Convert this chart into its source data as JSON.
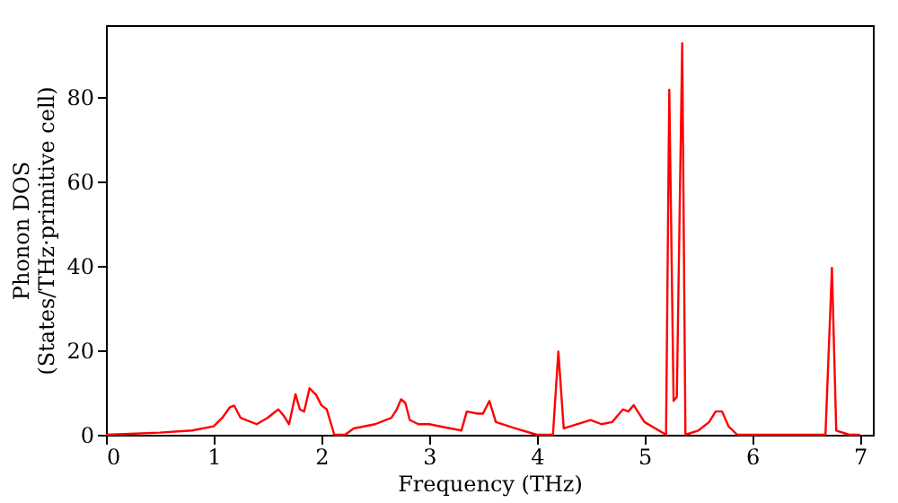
{
  "chart_data": {
    "type": "line",
    "xlabel": "Frequency (THz)",
    "ylabel": "Phonon DOS\n(States/THz·primitive cell)",
    "x": [
      0,
      0.5,
      0.8,
      1.0,
      1.08,
      1.15,
      1.19,
      1.25,
      1.3,
      1.4,
      1.5,
      1.6,
      1.65,
      1.7,
      1.76,
      1.8,
      1.84,
      1.89,
      1.95,
      2.0,
      2.05,
      2.12,
      2.22,
      2.3,
      2.5,
      2.65,
      2.7,
      2.74,
      2.78,
      2.82,
      2.9,
      3.0,
      3.2,
      3.3,
      3.35,
      3.45,
      3.5,
      3.56,
      3.62,
      3.8,
      4.0,
      4.15,
      4.2,
      4.25,
      4.5,
      4.6,
      4.7,
      4.75,
      4.8,
      4.85,
      4.9,
      5.0,
      5.2,
      5.23,
      5.27,
      5.3,
      5.35,
      5.38,
      5.5,
      5.6,
      5.66,
      5.72,
      5.78,
      5.86,
      6.0,
      6.68,
      6.74,
      6.78,
      6.9,
      7.0
    ],
    "series": [
      {
        "color": "#ff0000",
        "values": [
          0,
          0.5,
          1,
          2,
          4,
          6.5,
          6.9,
          4,
          3.5,
          2.5,
          4,
          6,
          4.5,
          2.5,
          9.6,
          6,
          5.5,
          11,
          9.5,
          7,
          6,
          0,
          0,
          1.5,
          2.5,
          4,
          6,
          8.4,
          7.5,
          3.5,
          2.5,
          2.5,
          1.5,
          1,
          5.5,
          5,
          5,
          8,
          3,
          1.5,
          0,
          0,
          19.7,
          1.5,
          3.5,
          2.5,
          3,
          4.5,
          6,
          5.5,
          7,
          3,
          0,
          81.7,
          8,
          9,
          92.7,
          0,
          1,
          3,
          5.5,
          5.5,
          2,
          0,
          0,
          0,
          39.5,
          1,
          0,
          0
        ]
      }
    ],
    "xlim": [
      0,
      7.12
    ],
    "ylim": [
      0,
      97
    ],
    "xticks": [
      0,
      1,
      2,
      3,
      4,
      5,
      6,
      7
    ],
    "yticks": [
      0,
      20,
      40,
      60,
      80
    ],
    "grid": false
  }
}
